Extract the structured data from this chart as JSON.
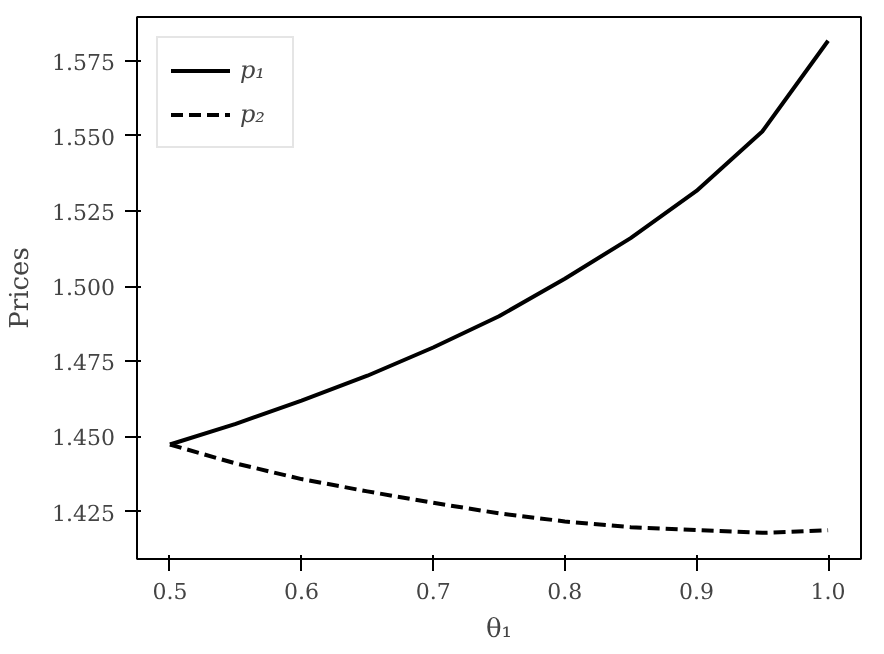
{
  "chart_data": {
    "type": "line",
    "xlabel": "θ₁",
    "ylabel": "Prices",
    "xlim": [
      0.475,
      1.025
    ],
    "ylim": [
      1.4092,
      1.5896
    ],
    "xticks": [
      0.5,
      0.6,
      0.7,
      0.8,
      0.9,
      {
        "value": 1.0,
        "label": "1.0"
      }
    ],
    "yticks": [
      {
        "value": 1.425,
        "label": "1.425"
      },
      {
        "value": 1.45,
        "label": "1.450"
      },
      {
        "value": 1.475,
        "label": "1.475"
      },
      {
        "value": 1.5,
        "label": "1.500"
      },
      {
        "value": 1.525,
        "label": "1.525"
      },
      {
        "value": 1.55,
        "label": "1.550"
      },
      {
        "value": 1.575,
        "label": "1.575"
      }
    ],
    "x": [
      0.5,
      0.55,
      0.6,
      0.65,
      0.7,
      0.75,
      0.8,
      0.85,
      0.9,
      0.95,
      1.0
    ],
    "series": [
      {
        "name": "p₁",
        "color": "#000000",
        "line_style": "solid",
        "values": [
          1.4473,
          1.4542,
          1.4619,
          1.4702,
          1.4796,
          1.49,
          1.5025,
          1.516,
          1.5317,
          1.5515,
          1.5817
        ]
      },
      {
        "name": "p₂",
        "color": "#000000",
        "line_style": "dashed",
        "values": [
          1.4473,
          1.441,
          1.4358,
          1.4317,
          1.4279,
          1.4244,
          1.4217,
          1.4198,
          1.4188,
          1.4179,
          1.4188
        ]
      }
    ],
    "legend": "top left",
    "grid": false,
    "marker": "none"
  }
}
